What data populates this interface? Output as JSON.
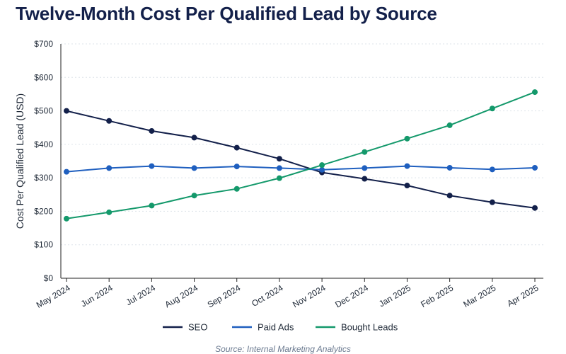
{
  "title": "Twelve-Month Cost Per Qualified Lead by Source",
  "source": "Source: Internal Marketing Analytics",
  "chart_data": {
    "type": "line",
    "title": "Twelve-Month Cost Per Qualified Lead by Source",
    "xlabel": "",
    "ylabel": "Cost Per Qualified Lead (USD)",
    "ylim": [
      0,
      700
    ],
    "yticks": [
      0,
      100,
      200,
      300,
      400,
      500,
      600,
      700
    ],
    "ytick_labels": [
      "$0",
      "$100",
      "$200",
      "$300",
      "$400",
      "$500",
      "$600",
      "$700"
    ],
    "categories": [
      "May 2024",
      "Jun 2024",
      "Jul 2024",
      "Aug 2024",
      "Sep 2024",
      "Oct 2024",
      "Nov 2024",
      "Dec 2024",
      "Jan 2025",
      "Feb 2025",
      "Mar 2025",
      "Apr 2025"
    ],
    "grid": "horizontal dotted",
    "legend_position": "bottom",
    "series": [
      {
        "name": "SEO",
        "color": "#13204a",
        "values": [
          500,
          470,
          440,
          420,
          390,
          357,
          316,
          297,
          277,
          247,
          227,
          210
        ]
      },
      {
        "name": "Paid Ads",
        "color": "#1f5fbf",
        "values": [
          318,
          329,
          335,
          329,
          334,
          329,
          324,
          329,
          335,
          330,
          325,
          330
        ]
      },
      {
        "name": "Bought Leads",
        "color": "#14996b",
        "values": [
          178,
          197,
          217,
          247,
          267,
          299,
          338,
          377,
          417,
          457,
          507,
          556
        ]
      }
    ]
  }
}
